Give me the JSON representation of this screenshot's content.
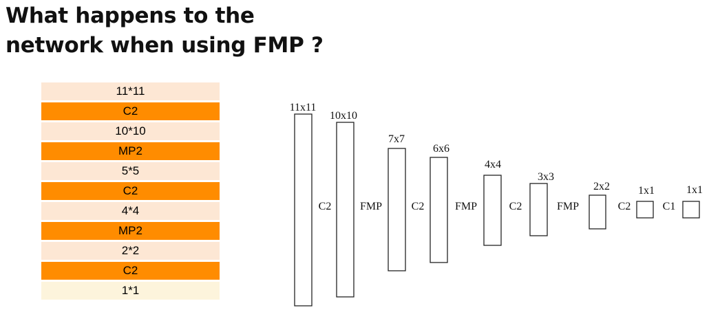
{
  "title": {
    "line1": "What happens to the",
    "line2": "network when using FMP ?"
  },
  "table": {
    "rows": [
      {
        "text": "11*11",
        "style": "light"
      },
      {
        "text": "C2",
        "style": "dark"
      },
      {
        "text": "10*10",
        "style": "light"
      },
      {
        "text": "MP2",
        "style": "dark"
      },
      {
        "text": "5*5",
        "style": "light"
      },
      {
        "text": "C2",
        "style": "dark"
      },
      {
        "text": "4*4",
        "style": "light"
      },
      {
        "text": "MP2",
        "style": "dark"
      },
      {
        "text": "2*2",
        "style": "light"
      },
      {
        "text": "C2",
        "style": "dark"
      },
      {
        "text": "1*1",
        "style": "last"
      }
    ]
  },
  "diagram": {
    "layers": [
      {
        "size": "11x11"
      },
      {
        "size": "10x10"
      },
      {
        "size": "7x7"
      },
      {
        "size": "6x6"
      },
      {
        "size": "4x4"
      },
      {
        "size": "3x3"
      },
      {
        "size": "2x2"
      },
      {
        "size": "1x1"
      },
      {
        "size": "1x1"
      }
    ],
    "ops": [
      "C2",
      "FMP",
      "C2",
      "FMP",
      "C2",
      "FMP",
      "C2",
      "C1"
    ]
  },
  "colors": {
    "dark_row": "#ff8c00",
    "light_row": "#fde7d4",
    "last_row": "#fdf4dc"
  }
}
